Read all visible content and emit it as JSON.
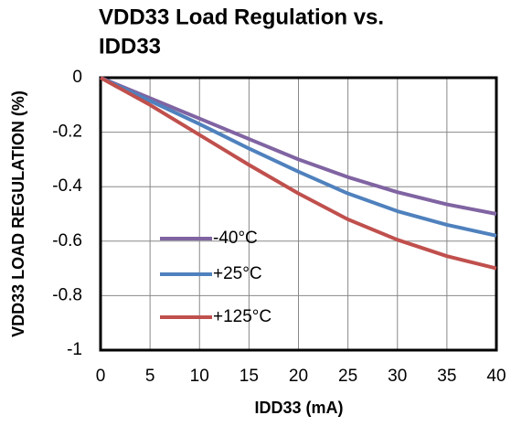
{
  "chart_data": {
    "type": "line",
    "title_lines": [
      "VDD33 Load Regulation vs.",
      "IDD33"
    ],
    "x_label": "IDD33 (mA)",
    "y_label": "VDD33 LOAD REGULATION (%)",
    "x": [
      0,
      5,
      10,
      15,
      20,
      25,
      30,
      35,
      40
    ],
    "series": [
      {
        "name": "-40°C",
        "color": "#8064a2",
        "values": [
          0,
          -0.075,
          -0.15,
          -0.225,
          -0.3,
          -0.365,
          -0.42,
          -0.465,
          -0.5
        ]
      },
      {
        "name": "+25°C",
        "color": "#4f81bd",
        "values": [
          0,
          -0.085,
          -0.17,
          -0.26,
          -0.345,
          -0.425,
          -0.49,
          -0.54,
          -0.58
        ]
      },
      {
        "name": "+125°C",
        "color": "#c0504d",
        "values": [
          0,
          -0.1,
          -0.21,
          -0.32,
          -0.425,
          -0.52,
          -0.595,
          -0.655,
          -0.7
        ]
      }
    ],
    "xlim": [
      0,
      40
    ],
    "xticks": [
      0,
      5,
      10,
      15,
      20,
      25,
      30,
      35,
      40
    ],
    "ylim": [
      -1,
      0
    ],
    "yticks": [
      0,
      -0.2,
      -0.4,
      -0.6,
      -0.8,
      -1
    ],
    "grid": true,
    "legend": "lower left"
  }
}
